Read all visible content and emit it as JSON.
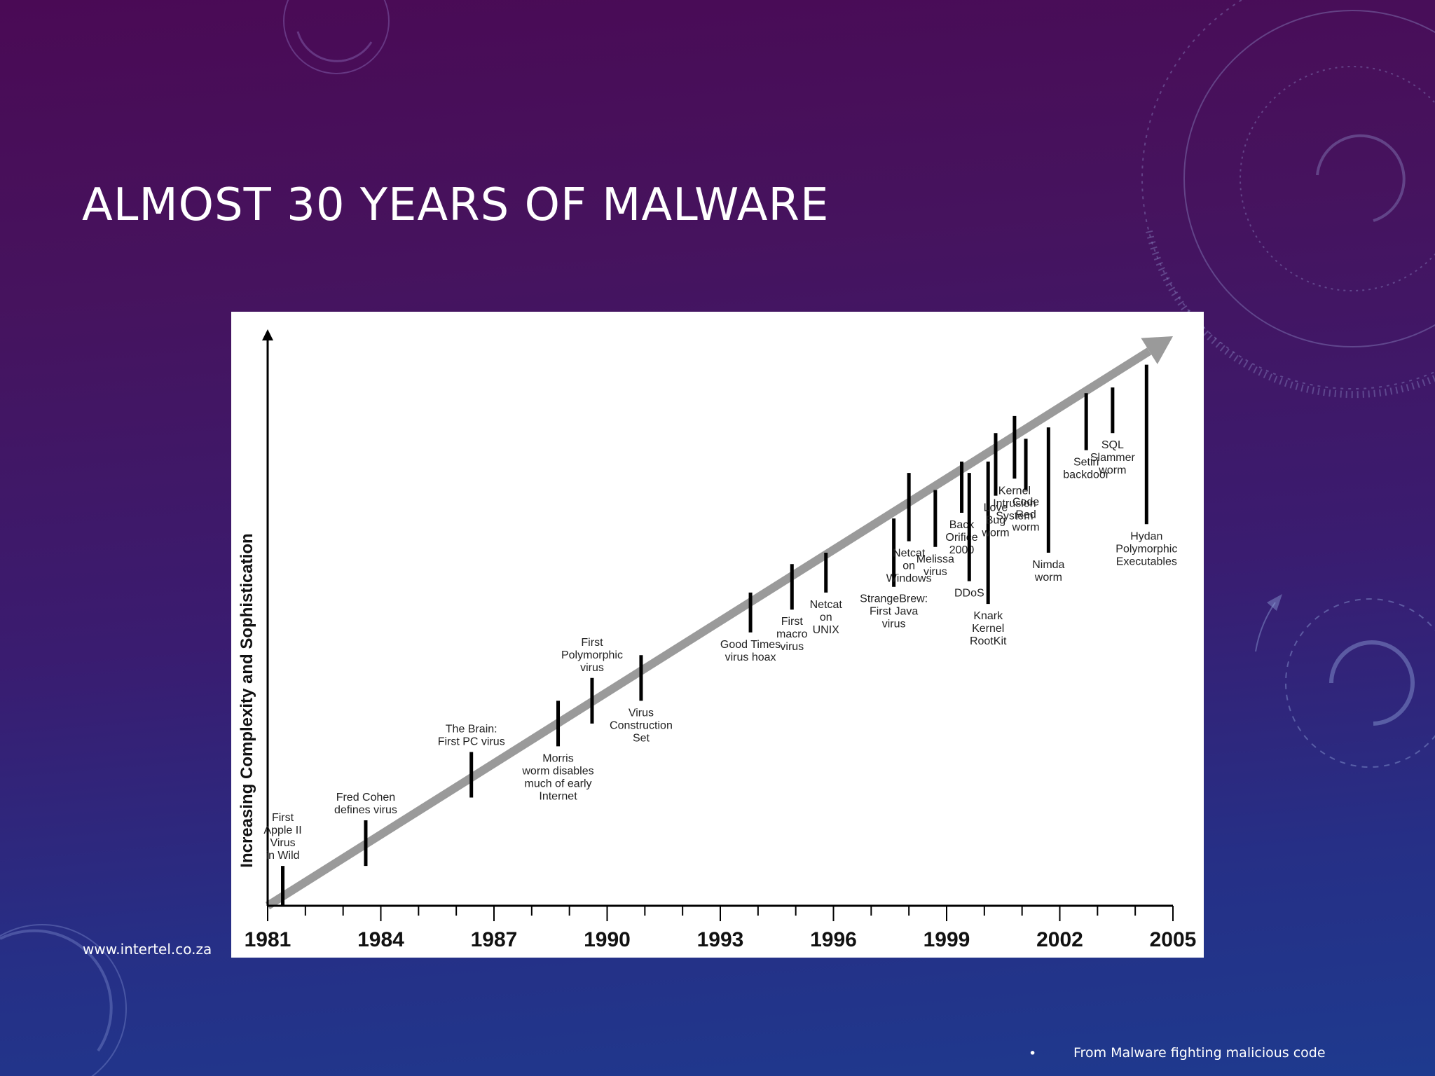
{
  "slide": {
    "title": "ALMOST 30 YEARS OF MALWARE",
    "footer_url": "www.intertel.co.za",
    "source_bullet": "•",
    "source_note": "From Malware fighting malicious code",
    "background_top": "#4a0a55",
    "background_bottom": "#1e3a8e",
    "deco_icons": [
      "radar-dial-icon",
      "circle-ring-icon",
      "refresh-arrow-icon"
    ]
  },
  "chart_data": {
    "type": "timeline",
    "ylabel": "Increasing Complexity and Sophistication",
    "xlabel": "",
    "x_ticks": [
      1981,
      1984,
      1987,
      1990,
      1993,
      1996,
      1999,
      2002,
      2005
    ],
    "xlim": [
      1981,
      2005
    ],
    "complexity_scale": [
      0,
      100
    ],
    "trend": {
      "x": [
        1981,
        2005
      ],
      "y": [
        0,
        100
      ],
      "color": "#9a9a9a"
    },
    "events": [
      {
        "year": 1981.4,
        "low": 0,
        "high": 7,
        "label": [
          "First",
          "Apple II",
          "Virus",
          "in Wild"
        ]
      },
      {
        "year": 1983.6,
        "low": 7,
        "high": 15,
        "label": [
          "Fred Cohen",
          "defines virus"
        ]
      },
      {
        "year": 1986.4,
        "low": 19,
        "high": 27,
        "label": [
          "The Brain:",
          "First PC virus"
        ]
      },
      {
        "year": 1988.7,
        "low": 28,
        "high": 36,
        "label": [
          "Morris",
          "worm disables",
          "much of early",
          "Internet"
        ]
      },
      {
        "year": 1989.6,
        "low": 32,
        "high": 40,
        "label": [
          "First",
          "Polymorphic",
          "virus"
        ]
      },
      {
        "year": 1990.9,
        "low": 36,
        "high": 44,
        "label": [
          "Virus",
          "Construction",
          "Set"
        ]
      },
      {
        "year": 1993.8,
        "low": 48,
        "high": 55,
        "label": [
          "Good Times",
          "virus hoax"
        ]
      },
      {
        "year": 1994.9,
        "low": 52,
        "high": 60,
        "label": [
          "First",
          "macro",
          "virus"
        ]
      },
      {
        "year": 1995.8,
        "low": 55,
        "high": 62,
        "label": [
          "Netcat",
          "on",
          "UNIX"
        ]
      },
      {
        "year": 1997.6,
        "low": 56,
        "high": 68,
        "label": [
          "StrangeBrew:",
          "First Java",
          "virus"
        ]
      },
      {
        "year": 1998.0,
        "low": 64,
        "high": 76,
        "label": [
          "Netcat",
          "on",
          "Windows"
        ]
      },
      {
        "year": 1998.7,
        "low": 63,
        "high": 73,
        "label": [
          "Melissa",
          "virus"
        ]
      },
      {
        "year": 1999.4,
        "low": 69,
        "high": 78,
        "label": [
          "Back",
          "Orifice",
          "2000"
        ]
      },
      {
        "year": 1999.6,
        "low": 57,
        "high": 76,
        "label": [
          "DDoS"
        ]
      },
      {
        "year": 2000.1,
        "low": 53,
        "high": 78,
        "label": [
          "Knark",
          "Kernel",
          "RootKit"
        ]
      },
      {
        "year": 2000.3,
        "low": 72,
        "high": 83,
        "label": [
          "Love",
          "Bug",
          "worm"
        ]
      },
      {
        "year": 2000.8,
        "low": 75,
        "high": 86,
        "label": [
          "Kernel",
          "Intrusion",
          "System"
        ]
      },
      {
        "year": 2001.1,
        "low": 73,
        "high": 82,
        "label": [
          "Code",
          "Red",
          "worm"
        ]
      },
      {
        "year": 2001.7,
        "low": 62,
        "high": 84,
        "label": [
          "Nimda",
          "worm"
        ]
      },
      {
        "year": 2002.7,
        "low": 80,
        "high": 90,
        "label": [
          "Setiri",
          "backdoor"
        ]
      },
      {
        "year": 2003.4,
        "low": 83,
        "high": 91,
        "label": [
          "SQL",
          "Slammer",
          "worm"
        ]
      },
      {
        "year": 2004.3,
        "low": 67,
        "high": 95,
        "label": [
          "Hydan",
          "Polymorphic",
          "Executables"
        ]
      }
    ]
  }
}
